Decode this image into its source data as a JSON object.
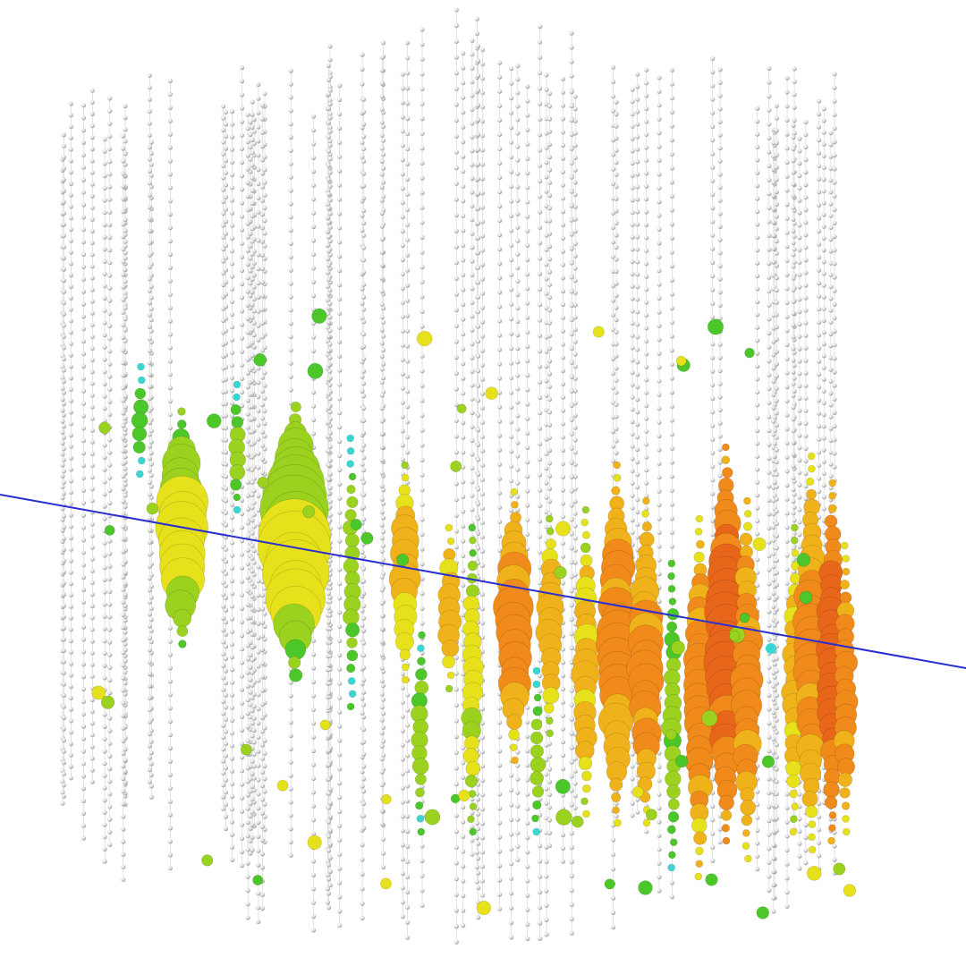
{
  "scene": {
    "background": "#ffffff",
    "track_color": "#2b2fd0",
    "string_color": "#cfcfcf",
    "idle_dom_color": "#d8d8d8",
    "palette": [
      "#3ad7d2",
      "#4cc72a",
      "#9ad21f",
      "#e6e11a",
      "#f0b21a",
      "#f08a1a",
      "#e8661a"
    ],
    "detector_strings": 78,
    "doms_per_string": 60
  }
}
